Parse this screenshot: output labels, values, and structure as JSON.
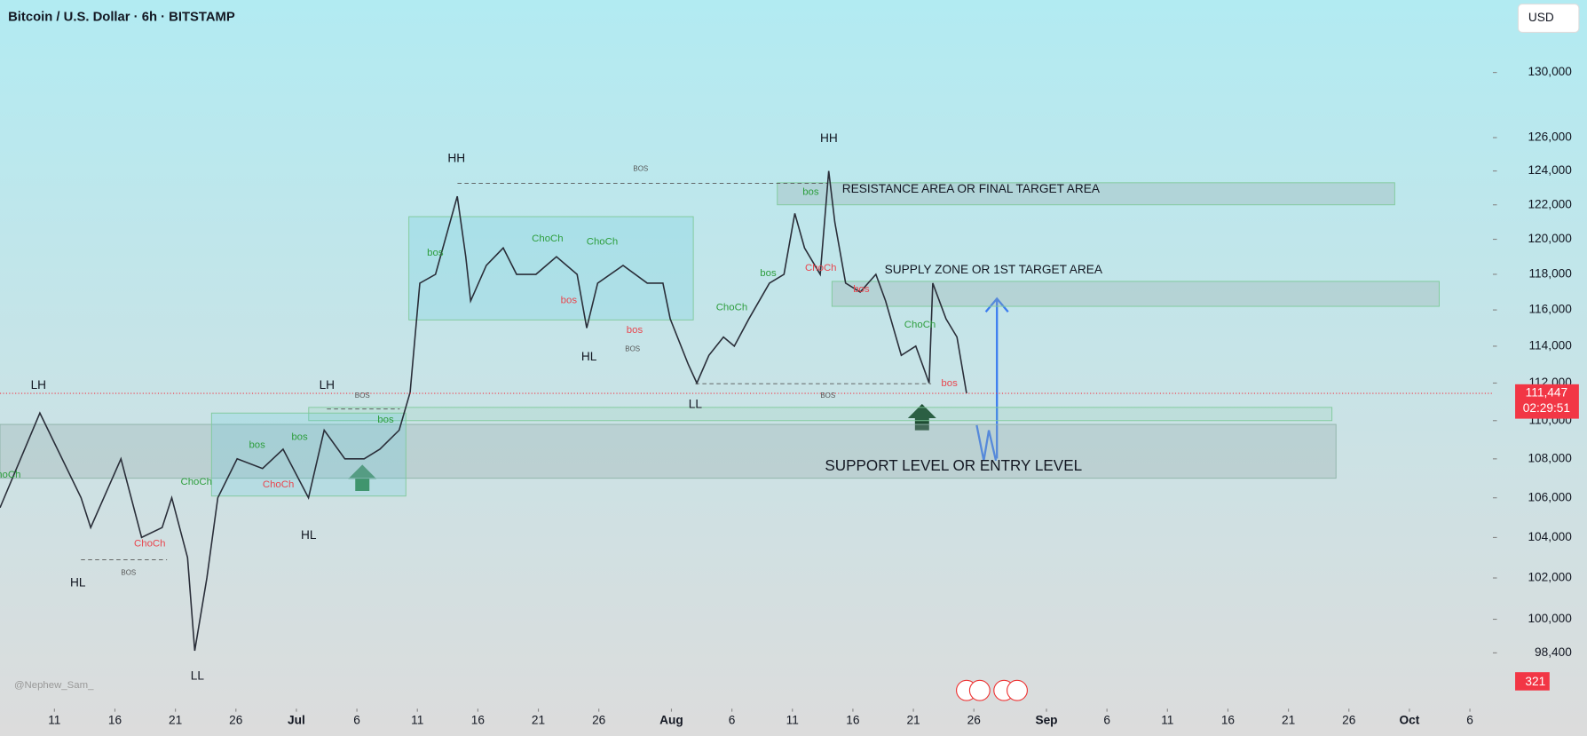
{
  "chart_data": {
    "type": "line",
    "title": "Bitcoin / U.S. Dollar · 6h · BITSTAMP",
    "currency": "USD",
    "watermark": "@Nephew_Sam_",
    "volume_label": "321",
    "log_scale": true,
    "grid": false,
    "xlim": [
      6.5,
      129.9
    ],
    "ylim": [
      95800,
      134600
    ],
    "xticks": [
      {
        "value": 11,
        "label": "11"
      },
      {
        "value": 16,
        "label": "16"
      },
      {
        "value": 21,
        "label": "21"
      },
      {
        "value": 26,
        "label": "26"
      },
      {
        "value": 31,
        "label": "Jul"
      },
      {
        "value": 36,
        "label": "6"
      },
      {
        "value": 41,
        "label": "11"
      },
      {
        "value": 46,
        "label": "16"
      },
      {
        "value": 51,
        "label": "21"
      },
      {
        "value": 56,
        "label": "26"
      },
      {
        "value": 62,
        "label": "Aug"
      },
      {
        "value": 67,
        "label": "6"
      },
      {
        "value": 72,
        "label": "11"
      },
      {
        "value": 77,
        "label": "16"
      },
      {
        "value": 82,
        "label": "21"
      },
      {
        "value": 87,
        "label": "26"
      },
      {
        "value": 93,
        "label": "Sep"
      },
      {
        "value": 98,
        "label": "6"
      },
      {
        "value": 103,
        "label": "11"
      },
      {
        "value": 108,
        "label": "16"
      },
      {
        "value": 113,
        "label": "21"
      },
      {
        "value": 118,
        "label": "26"
      },
      {
        "value": 123,
        "label": "Oct"
      },
      {
        "value": 128,
        "label": "6"
      }
    ],
    "yticks": [
      {
        "value": 130000,
        "label": "130,000"
      },
      {
        "value": 126000,
        "label": "126,000"
      },
      {
        "value": 124000,
        "label": "124,000"
      },
      {
        "value": 122000,
        "label": "122,000"
      },
      {
        "value": 120000,
        "label": "120,000"
      },
      {
        "value": 118000,
        "label": "118,000"
      },
      {
        "value": 116000,
        "label": "116,000"
      },
      {
        "value": 114000,
        "label": "114,000"
      },
      {
        "value": 112000,
        "label": "112,000"
      },
      {
        "value": 110000,
        "label": "110,000"
      },
      {
        "value": 108000,
        "label": "108,000"
      },
      {
        "value": 106000,
        "label": "106,000"
      },
      {
        "value": 104000,
        "label": "104,000"
      },
      {
        "value": 102000,
        "label": "102,000"
      },
      {
        "value": 100000,
        "label": "100,000"
      },
      {
        "value": 98400,
        "label": "98,400"
      }
    ],
    "series": [
      {
        "name": "BTCUSD",
        "color": "#2a2e39",
        "x": [
          6.5,
          9.8,
          13.2,
          14.0,
          16.5,
          18.2,
          19.9,
          20.7,
          22.0,
          22.6,
          23.6,
          24.5,
          26.1,
          28.2,
          29.9,
          32.0,
          33.3,
          35.0,
          36.6,
          37.9,
          39.5,
          40.4,
          41.2,
          42.5,
          44.3,
          45.0,
          45.4,
          46.7,
          48.1,
          49.2,
          50.8,
          52.5,
          54.2,
          55.0,
          55.9,
          58.0,
          60.0,
          61.3,
          61.9,
          63.4,
          64.1,
          65.1,
          66.3,
          67.2,
          68.4,
          70.1,
          71.3,
          72.2,
          73.0,
          74.3,
          75.0,
          75.5,
          76.4,
          77.6,
          78.9,
          79.7,
          81.0,
          82.2,
          83.3,
          83.6,
          84.7,
          85.6,
          86.4
        ],
        "values": [
          105500,
          110400,
          106000,
          104500,
          108000,
          104000,
          104500,
          106000,
          103000,
          98500,
          102000,
          106000,
          108000,
          107500,
          108500,
          106000,
          109500,
          108000,
          108000,
          108500,
          109500,
          111500,
          117500,
          118000,
          122500,
          119000,
          116500,
          118500,
          119500,
          118000,
          118000,
          119000,
          118000,
          115000,
          117500,
          118500,
          117500,
          117500,
          115500,
          113000,
          112000,
          113500,
          114500,
          114000,
          115500,
          117500,
          118000,
          121500,
          119500,
          118000,
          124000,
          121000,
          117500,
          117000,
          118000,
          116500,
          113500,
          114000,
          112000,
          117500,
          115500,
          114500,
          111447
        ]
      }
    ],
    "price_label": {
      "value": 111447,
      "label": "111,447"
    },
    "countdown": "02:29:51",
    "zones": [
      {
        "label": "SUPPORT LEVEL OR ENTRY LEVEL",
        "range": [
          107000,
          109800
        ]
      },
      {
        "label": "SUPPLY ZONE OR 1ST TARGET AREA",
        "range": [
          116200,
          117600
        ]
      },
      {
        "label": "RESISTANCE AREA OR FINAL TARGET AREA",
        "range": [
          122000,
          123300
        ]
      },
      {
        "range": [
          110000,
          110700
        ]
      }
    ],
    "annotations": [
      "LH",
      "HL",
      "LH",
      "HL",
      "HH",
      "HL",
      "LL",
      "HH",
      "LL",
      "bos",
      "bos",
      "bos",
      "bos",
      "bos",
      "bos",
      "ChoCh",
      "ChoCh",
      "ChoCh",
      "ChoCh",
      "ChoCh",
      "ChoCh",
      "bos",
      "bos",
      "bos",
      "bos",
      "ChoCh",
      "ChoCh",
      "ChoCh",
      "BOS",
      "BOS",
      "BOS",
      "BOS",
      "BOS"
    ]
  }
}
